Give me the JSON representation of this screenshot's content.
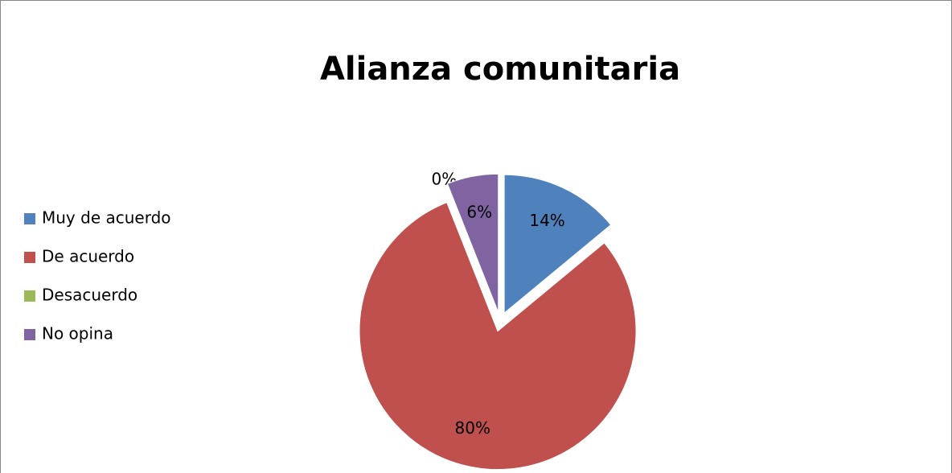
{
  "chart_data": {
    "type": "pie",
    "title": "Alianza comunitaria",
    "categories": [
      "Muy de acuerdo",
      "De acuerdo",
      "Desacuerdo",
      "No opina"
    ],
    "values": [
      14,
      80,
      0,
      6
    ],
    "value_labels": [
      "14%",
      "80%",
      "0%",
      "6%"
    ],
    "colors": [
      "#4f81bd",
      "#c0504d",
      "#9bbb59",
      "#8064a2"
    ],
    "legend": "left"
  }
}
